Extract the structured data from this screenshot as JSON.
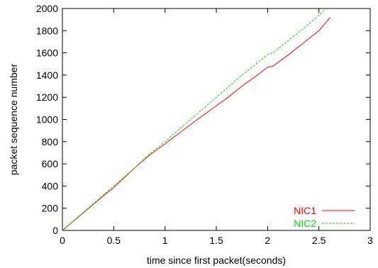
{
  "chart_data": {
    "type": "line",
    "xlabel": "time since first packet(seconds)",
    "ylabel": "packet sequence number",
    "xlim": [
      0,
      3
    ],
    "ylim": [
      0,
      2000
    ],
    "xticks": [
      "0",
      "0.5",
      "1",
      "1.5",
      "2",
      "2.5",
      "3"
    ],
    "yticks": [
      "0",
      "200",
      "400",
      "600",
      "800",
      "1000",
      "1200",
      "1400",
      "1600",
      "1800",
      "2000"
    ],
    "grid": false,
    "legend_position": "bottom-right",
    "series": [
      {
        "name": "NIC1",
        "color": "#ff0000",
        "style": "solid",
        "x": [
          0,
          0.25,
          0.45,
          0.48,
          0.55,
          0.7,
          0.85,
          1.0,
          1.15,
          1.3,
          1.45,
          1.6,
          1.75,
          1.9,
          2.0,
          2.05,
          2.2,
          2.35,
          2.5,
          2.61
        ],
        "y": [
          0,
          195,
          350,
          370,
          430,
          560,
          680,
          780,
          885,
          990,
          1090,
          1190,
          1300,
          1400,
          1470,
          1480,
          1580,
          1690,
          1800,
          1920
        ]
      },
      {
        "name": "NIC2",
        "color": "#00dd00",
        "style": "dashed",
        "x": [
          0,
          0.25,
          0.45,
          0.5,
          0.7,
          0.85,
          1.0,
          1.15,
          1.3,
          1.45,
          1.6,
          1.75,
          1.9,
          2.0,
          2.05,
          2.2,
          2.35,
          2.45,
          2.55
        ],
        "y": [
          0,
          200,
          360,
          400,
          560,
          690,
          800,
          920,
          1040,
          1160,
          1280,
          1400,
          1510,
          1585,
          1600,
          1710,
          1820,
          1900,
          1980
        ]
      }
    ]
  }
}
